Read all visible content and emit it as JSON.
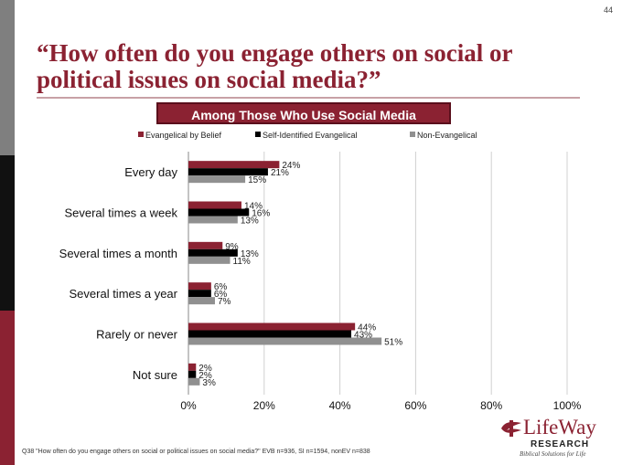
{
  "page_number": "44",
  "title": "“How often do you engage others on social or political issues on social media?”",
  "subtitle": "Among Those Who Use Social Media",
  "footnote": "Q38 \"How often do you engage others on social or political issues on social media?\" EVB n=936, SI n=1594, nonEV n=838",
  "logo": {
    "name": "LifeWay",
    "sub": "RESEARCH",
    "tagline": "Biblical Solutions for Life"
  },
  "colors": {
    "accent": "#8b2232"
  },
  "chart_data": {
    "type": "bar",
    "orientation": "horizontal",
    "categories": [
      "Every day",
      "Several times a week",
      "Several times a month",
      "Several times a year",
      "Rarely or never",
      "Not sure"
    ],
    "series": [
      {
        "name": "Evangelical by Belief",
        "color": "#8b2232",
        "values": [
          24,
          14,
          9,
          6,
          44,
          2
        ]
      },
      {
        "name": "Self-Identified Evangelical",
        "color": "#000000",
        "values": [
          21,
          16,
          13,
          6,
          43,
          2
        ]
      },
      {
        "name": "Non-Evangelical",
        "color": "#909090",
        "values": [
          15,
          13,
          11,
          7,
          51,
          3
        ]
      }
    ],
    "xlim": [
      0,
      100
    ],
    "xticks": [
      "0%",
      "20%",
      "40%",
      "60%",
      "80%",
      "100%"
    ],
    "value_suffix": "%",
    "grid": true,
    "legend_position": "top"
  }
}
